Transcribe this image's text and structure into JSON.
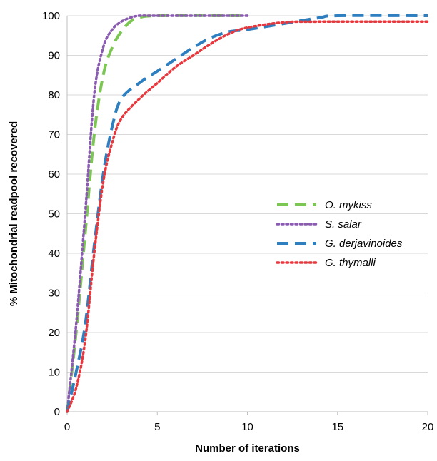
{
  "chart_data": {
    "type": "line",
    "title": "",
    "xlabel": "Number of iterations",
    "ylabel": "% Mitochondrial readpool recovered",
    "xlim": [
      0,
      20
    ],
    "ylim": [
      0,
      100
    ],
    "xticks": [
      0,
      5,
      10,
      15,
      20
    ],
    "yticks": [
      0,
      10,
      20,
      30,
      40,
      50,
      60,
      70,
      80,
      90,
      100
    ],
    "grid": "horizontal",
    "legend_position": "right",
    "series": [
      {
        "name": "O. mykiss",
        "color": "#7cc653",
        "dash": "dashed-long",
        "points": [
          [
            0,
            0
          ],
          [
            0.5,
            20
          ],
          [
            1,
            45
          ],
          [
            1.5,
            70
          ],
          [
            2,
            85
          ],
          [
            2.5,
            92
          ],
          [
            3,
            96
          ],
          [
            3.5,
            98.5
          ],
          [
            4,
            99.5
          ],
          [
            5,
            100
          ],
          [
            10,
            100
          ]
        ]
      },
      {
        "name": "S. salar",
        "color": "#8a5bb0",
        "dash": "dotted",
        "points": [
          [
            0,
            0
          ],
          [
            0.5,
            22
          ],
          [
            1,
            50
          ],
          [
            1.5,
            80
          ],
          [
            2,
            92
          ],
          [
            2.5,
            96.5
          ],
          [
            3,
            98.5
          ],
          [
            3.5,
            99.5
          ],
          [
            4,
            100
          ],
          [
            5,
            100
          ],
          [
            10,
            100
          ]
        ]
      },
      {
        "name": "G. derjavinoides",
        "color": "#2e7fc0",
        "dash": "dashed-long",
        "points": [
          [
            0,
            0
          ],
          [
            0.5,
            10
          ],
          [
            1,
            22
          ],
          [
            1.5,
            42
          ],
          [
            2,
            60
          ],
          [
            2.5,
            72
          ],
          [
            3,
            79
          ],
          [
            4,
            83
          ],
          [
            5,
            86
          ],
          [
            6,
            89
          ],
          [
            7,
            92
          ],
          [
            8,
            94.5
          ],
          [
            9,
            96
          ],
          [
            10,
            96.5
          ],
          [
            12,
            98
          ],
          [
            14,
            99.5
          ],
          [
            15,
            100
          ],
          [
            20,
            100
          ]
        ]
      },
      {
        "name": "G. thymalli",
        "color": "#e8383d",
        "dash": "dotted",
        "points": [
          [
            0,
            0
          ],
          [
            0.5,
            6
          ],
          [
            1,
            18
          ],
          [
            1.5,
            40
          ],
          [
            2,
            58
          ],
          [
            2.5,
            68
          ],
          [
            3,
            74
          ],
          [
            4,
            79
          ],
          [
            5,
            83
          ],
          [
            6,
            87
          ],
          [
            7,
            90
          ],
          [
            8,
            93
          ],
          [
            9,
            95.5
          ],
          [
            10,
            97
          ],
          [
            12,
            98.3
          ],
          [
            14,
            98.5
          ],
          [
            20,
            98.5
          ]
        ]
      }
    ]
  }
}
